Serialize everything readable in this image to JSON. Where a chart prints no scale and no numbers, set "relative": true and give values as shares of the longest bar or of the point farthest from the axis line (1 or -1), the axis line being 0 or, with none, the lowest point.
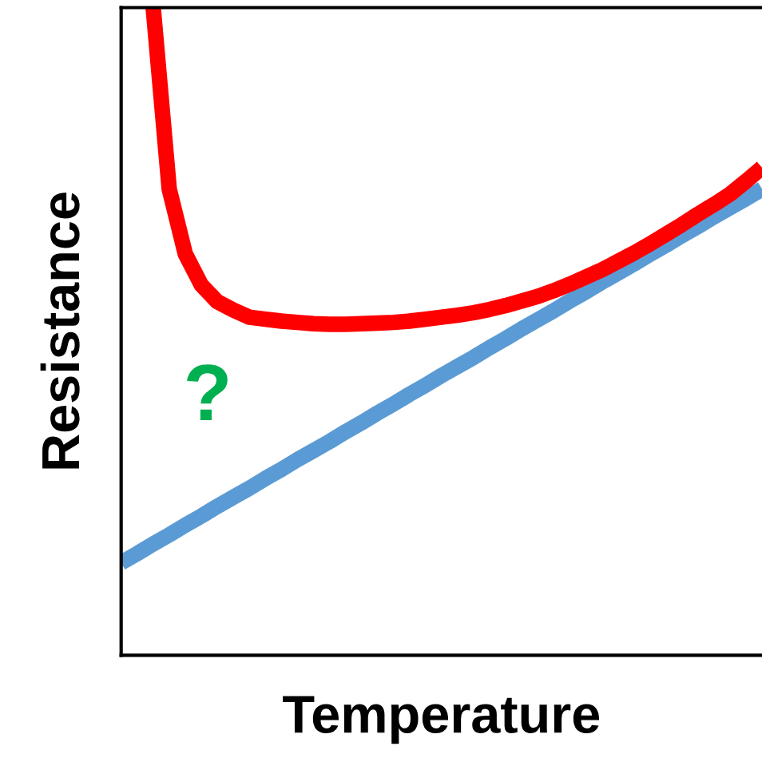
{
  "chart_data": {
    "type": "line",
    "relative": true,
    "xlabel": "Temperature",
    "ylabel": "Resistance",
    "annotations": [
      "?"
    ],
    "categories": [
      null,
      null,
      null,
      null,
      null,
      null,
      null,
      null,
      null,
      null,
      null,
      null,
      null,
      null,
      null,
      null,
      null,
      null,
      null,
      null,
      null,
      null,
      null,
      null,
      null,
      null,
      null,
      null,
      null,
      null,
      null,
      null,
      null,
      null,
      null,
      null,
      null,
      null,
      null,
      null,
      null
    ],
    "series": [
      {
        "color": "#5b9bd5",
        "values": [
          0.143,
          0.157,
          0.172,
          0.186,
          0.201,
          0.215,
          0.23,
          0.244,
          0.258,
          0.273,
          0.287,
          0.302,
          0.316,
          0.33,
          0.345,
          0.359,
          0.374,
          0.388,
          0.403,
          0.417,
          0.432,
          0.446,
          0.46,
          0.475,
          0.489,
          0.504,
          0.518,
          0.532,
          0.547,
          0.561,
          0.576,
          0.59,
          0.604,
          0.619,
          0.633,
          0.648,
          0.662,
          0.677,
          0.691,
          0.705,
          0.72
        ]
      },
      {
        "color": "#ff0000",
        "values": [
          null,
          null,
          1.0,
          0.72,
          0.62,
          0.572,
          0.546,
          0.533,
          0.522,
          0.519,
          0.516,
          0.514,
          0.512,
          0.511,
          0.511,
          0.512,
          0.513,
          0.514,
          0.516,
          0.519,
          0.522,
          0.525,
          0.529,
          0.534,
          0.54,
          0.547,
          0.554,
          0.563,
          0.573,
          0.584,
          0.595,
          0.608,
          0.621,
          0.635,
          0.65,
          0.665,
          0.681,
          0.696,
          0.712,
          0.732,
          0.753
        ]
      }
    ]
  }
}
